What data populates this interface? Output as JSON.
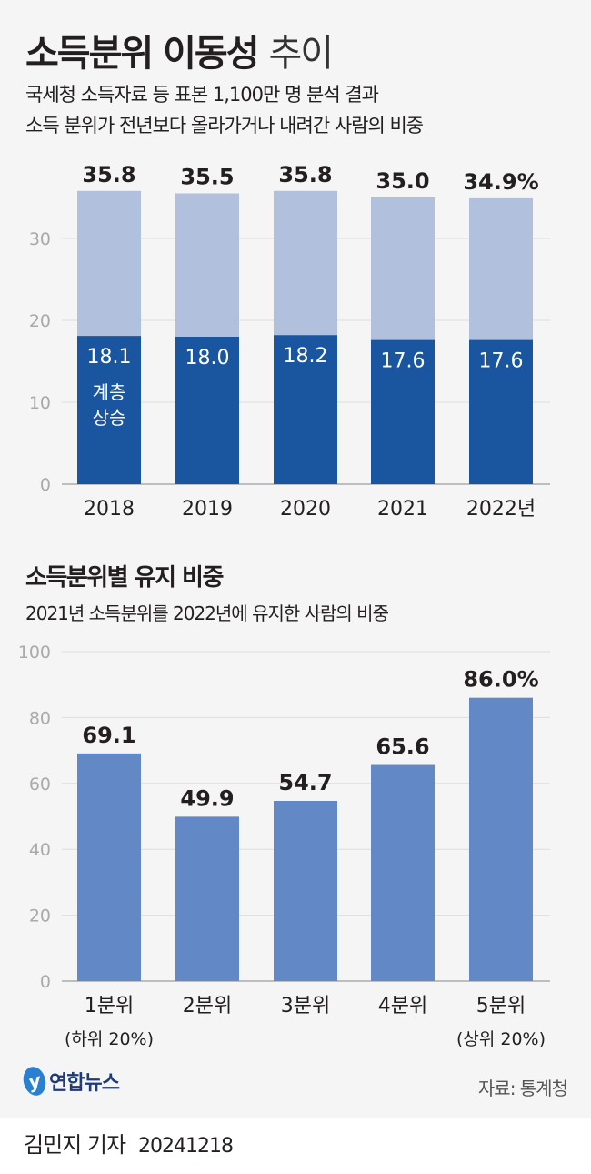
{
  "title": {
    "bold": "소득분위 이동성",
    "light": "추이"
  },
  "subtitle": [
    "국세청 소득자료 등 표본 1,100만 명 분석 결과",
    "소득 분위가 전년보다 올라가거나 내려간 사람의 비중"
  ],
  "chart2_title": "소득분위별 유지 비중",
  "chart2_subtitle": "2021년 소득분위를 2022년에 유지한 사람의 비중",
  "colors": {
    "upper": "#b1c1dd",
    "lower": "#1a55a0",
    "bars2": "#6289c6",
    "text": "#231f20",
    "axis": "#aaaaaa"
  },
  "chart_data": [
    {
      "type": "bar",
      "stacked": true,
      "categories": [
        "2018",
        "2019",
        "2020",
        "2021",
        "2022년"
      ],
      "series": [
        {
          "name": "계층 상승",
          "values": [
            18.1,
            18.0,
            18.2,
            17.6,
            17.6
          ]
        },
        {
          "values": [
            17.7,
            17.5,
            17.6,
            17.4,
            17.3
          ]
        }
      ],
      "totals": [
        "35.8",
        "35.5",
        "35.8",
        "35.0",
        "34.9%"
      ],
      "inner_labels": [
        "18.1",
        "18.0",
        "18.2",
        "17.6",
        "17.6"
      ],
      "annotation": [
        "계층",
        "상승"
      ],
      "yticks": [
        "0",
        "10",
        "20",
        "30"
      ],
      "ylim": [
        0,
        36
      ],
      "grid": true
    },
    {
      "type": "bar",
      "categories": [
        [
          "1분위",
          "(하위 20%)"
        ],
        [
          "2분위",
          ""
        ],
        [
          "3분위",
          ""
        ],
        [
          "4분위",
          ""
        ],
        [
          "5분위",
          "(상위 20%)"
        ]
      ],
      "values": [
        69.1,
        49.9,
        54.7,
        65.6,
        86.0
      ],
      "labels": [
        "69.1",
        "49.9",
        "54.7",
        "65.6",
        "86.0%"
      ],
      "yticks": [
        "0",
        "20",
        "40",
        "60",
        "80",
        "100"
      ],
      "ylim": [
        0,
        100
      ],
      "grid": true
    }
  ],
  "logo": "연합뉴스",
  "source": "자료: 통계청",
  "byline": {
    "name": "김민지 기자",
    "date": "20241218"
  }
}
